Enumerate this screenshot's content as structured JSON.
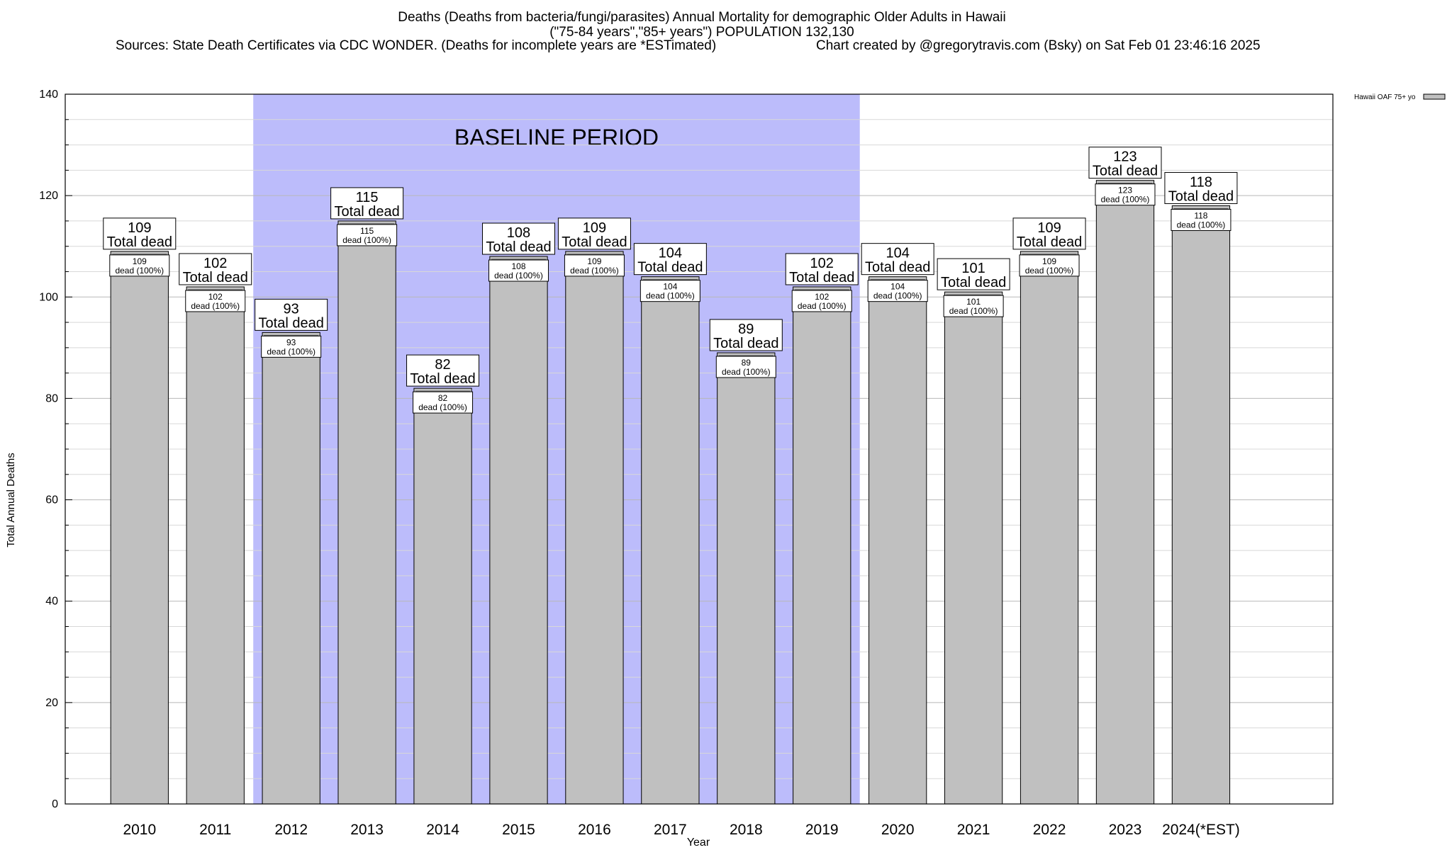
{
  "header": {
    "title_line1": "Deaths (Deaths from bacteria/fungi/parasites) Annual Mortality for demographic Older Adults in Hawaii",
    "title_line2": "(\"75-84 years\",\"85+ years\") POPULATION 132,130",
    "sources": "Sources: State Death Certificates via CDC WONDER. (Deaths for incomplete years are *ESTimated)",
    "credit": "Chart created by @gregorytravis.com (Bsky) on Sat Feb 01 23:46:16 2025"
  },
  "chart_data": {
    "type": "bar",
    "title": "Deaths (Deaths from bacteria/fungi/parasites) Annual Mortality for demographic Older Adults in Hawaii",
    "xlabel": "Year",
    "ylabel": "Total Annual Deaths",
    "ylim": [
      0,
      140
    ],
    "yticks": [
      0,
      20,
      40,
      60,
      80,
      100,
      120,
      140
    ],
    "grid": true,
    "legend_position": "top-right",
    "categories": [
      "2010",
      "2011",
      "2012",
      "2013",
      "2014",
      "2015",
      "2016",
      "2017",
      "2018",
      "2019",
      "2020",
      "2021",
      "2022",
      "2023",
      "2024(*EST)"
    ],
    "series": [
      {
        "name": "Hawaii OAF 75+ yo",
        "values": [
          109,
          102,
          93,
          115,
          82,
          108,
          109,
          104,
          89,
          102,
          104,
          101,
          109,
          123,
          118
        ]
      }
    ],
    "total_label": "Total dead",
    "inner_label": "dead (100%)",
    "baseline": {
      "label": "BASELINE PERIOD",
      "start": "2012",
      "end": "2019",
      "color": "#bcbcfb"
    },
    "bar_color": "#c0c0c0"
  }
}
